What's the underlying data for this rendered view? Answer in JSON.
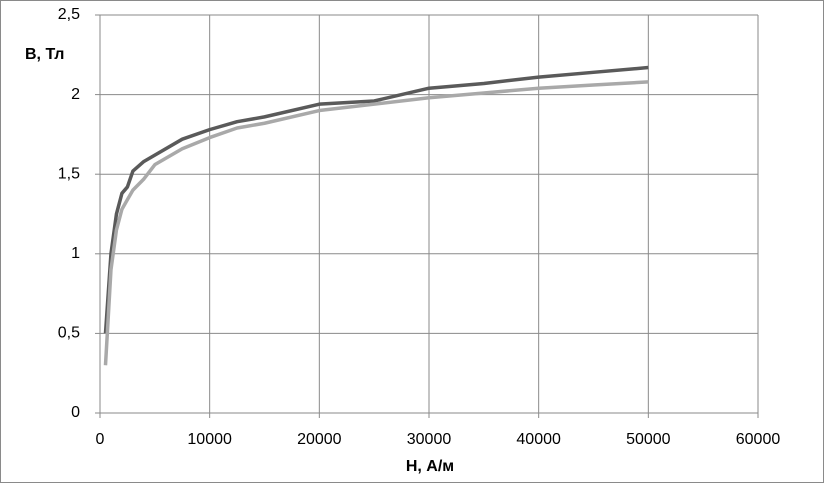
{
  "chart_data": {
    "type": "line",
    "x_label": "H, А/м",
    "y_label": "B, Тл",
    "x": [
      500,
      1000,
      1500,
      2000,
      2500,
      3000,
      4000,
      5000,
      7500,
      10000,
      12500,
      15000,
      20000,
      25000,
      30000,
      35000,
      40000,
      45000,
      50000
    ],
    "series": [
      {
        "color": "#5a5a5a",
        "values": [
          0.5,
          1.0,
          1.25,
          1.38,
          1.42,
          1.52,
          1.58,
          1.62,
          1.72,
          1.78,
          1.83,
          1.86,
          1.94,
          1.96,
          2.04,
          2.07,
          2.11,
          2.14,
          2.17
        ]
      },
      {
        "color": "#a9a9a9",
        "values": [
          0.3,
          0.9,
          1.15,
          1.28,
          1.34,
          1.4,
          1.47,
          1.56,
          1.66,
          1.73,
          1.79,
          1.82,
          1.9,
          1.94,
          1.98,
          2.01,
          2.04,
          2.06,
          2.08
        ]
      }
    ],
    "xlim": [
      0,
      60000
    ],
    "xticks": [
      0,
      10000,
      20000,
      30000,
      40000,
      50000,
      60000
    ],
    "ylim": [
      0,
      2.5
    ],
    "yticks": [
      0,
      {
        "value": 0.5,
        "label": "0,5"
      },
      1,
      {
        "value": 1.5,
        "label": "1,5"
      },
      2,
      {
        "value": 2.5,
        "label": "2,5"
      }
    ],
    "grid": true
  }
}
